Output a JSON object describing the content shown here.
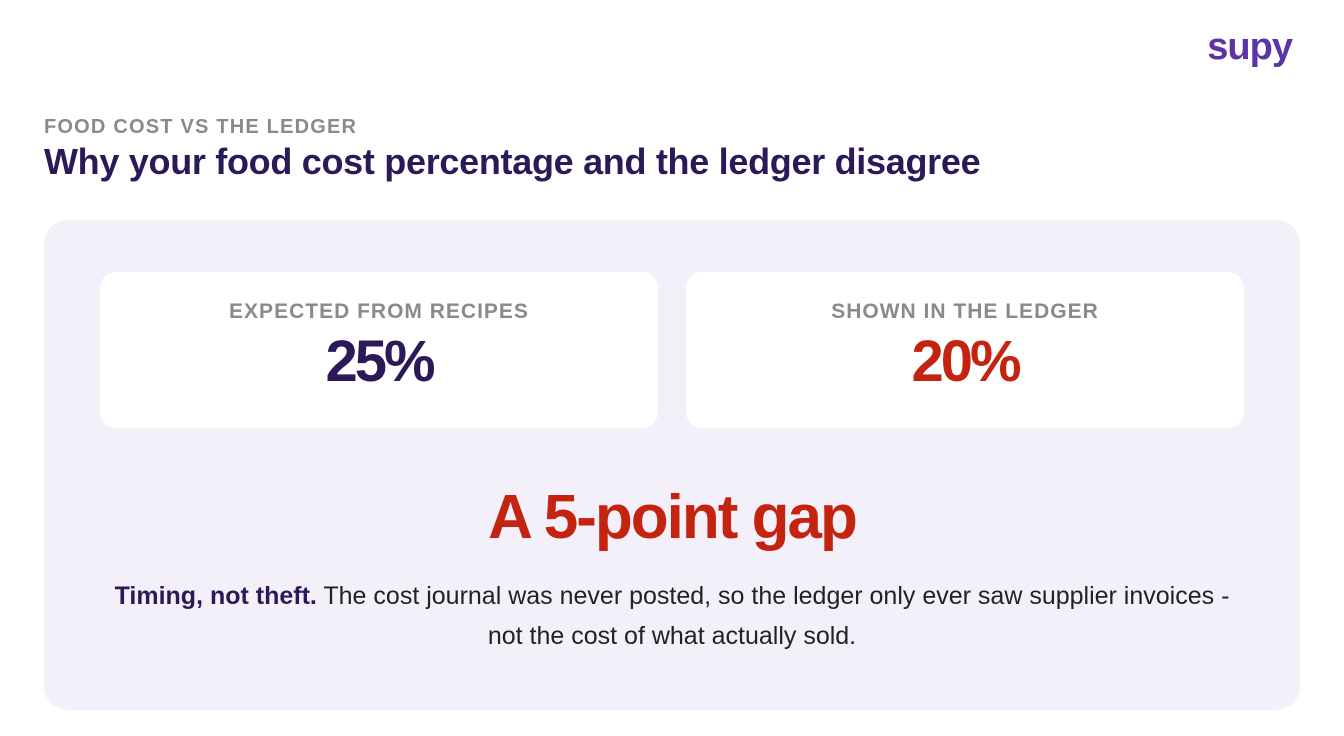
{
  "brand": {
    "logo_text": "supy",
    "accent_color": "#5b35a8"
  },
  "header": {
    "eyebrow": "FOOD COST VS THE LEDGER",
    "title": "Why your food cost percentage and the ledger disagree"
  },
  "stats": {
    "expected": {
      "label": "EXPECTED FROM RECIPES",
      "value": "25%",
      "color": "#2b1a57"
    },
    "ledger": {
      "label": "SHOWN IN THE LEDGER",
      "value": "20%",
      "color": "#c4240f"
    }
  },
  "summary": {
    "headline": "A 5-point gap",
    "lead": "Timing, not theft.",
    "body": " The cost journal was never posted, so the ledger only ever saw supplier invoices - not the cost of what actually sold."
  }
}
